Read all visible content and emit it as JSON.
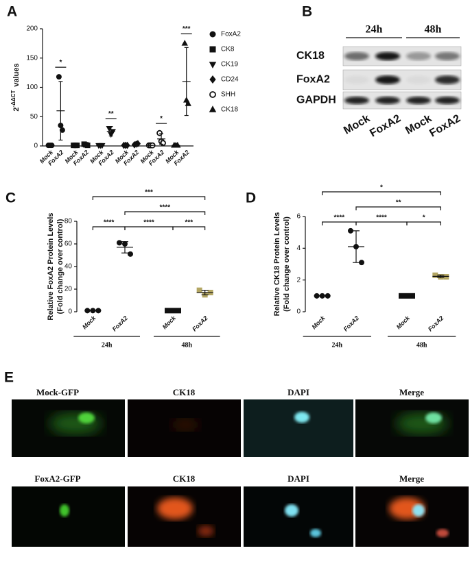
{
  "chart_data": [
    {
      "type": "grouped_dotplot",
      "panel": "A",
      "ylabel": "2",
      "ylabel_exp": "-ΔΔCT",
      "ylabel_tail": "values",
      "ylim": [
        0,
        200
      ],
      "yticks": [
        0,
        50,
        100,
        150,
        200
      ],
      "color": "#111",
      "groups": [
        {
          "name": "FoxA2",
          "marker": "circle",
          "categories": [
            "Mock",
            "FoxA2"
          ],
          "points": [
            [
              1,
              1,
              1
            ],
            [
              118,
              35,
              27
            ]
          ],
          "means": [
            1,
            60
          ],
          "sd": [
            0,
            50
          ],
          "sig": "*"
        },
        {
          "name": "CK8",
          "marker": "square",
          "categories": [
            "Mock",
            "FoxA2"
          ],
          "points": [
            [
              1,
              1,
              1
            ],
            [
              3,
              2,
              1
            ]
          ],
          "means": [
            1,
            2
          ],
          "sd": [
            0,
            1
          ]
        },
        {
          "name": "CK19",
          "marker": "triangle-down",
          "categories": [
            "Mock",
            "FoxA2"
          ],
          "points": [
            [
              1,
              1,
              1
            ],
            [
              30,
              20,
              25
            ]
          ],
          "means": [
            1,
            25
          ],
          "sd": [
            0,
            8
          ],
          "sig": "**"
        },
        {
          "name": "CD24",
          "marker": "diamond",
          "categories": [
            "Mock",
            "FoxA2"
          ],
          "points": [
            [
              1,
              1,
              1
            ],
            [
              2,
              3,
              4
            ]
          ],
          "means": [
            1,
            3
          ],
          "sd": [
            0,
            1
          ]
        },
        {
          "name": "SHH",
          "marker": "open-circle",
          "categories": [
            "Mock",
            "FoxA2"
          ],
          "points": [
            [
              1,
              1,
              1
            ],
            [
              22,
              8,
              5
            ]
          ],
          "means": [
            1,
            12
          ],
          "sd": [
            0,
            9
          ],
          "sig": "*"
        },
        {
          "name": "CK18",
          "marker": "triangle-up",
          "categories": [
            "Mock",
            "FoxA2"
          ],
          "points": [
            [
              1,
              1,
              1
            ],
            [
              175,
              78,
              72
            ]
          ],
          "means": [
            1,
            110
          ],
          "sd": [
            0,
            58
          ],
          "sig": "***"
        }
      ]
    },
    {
      "type": "dotplot",
      "panel": "C",
      "ylabel": "Relative FoxA2 Protein Levels",
      "ylabel2": "(Fold change over control)",
      "ylim": [
        0,
        80
      ],
      "yticks": [
        0,
        20,
        40,
        60,
        80
      ],
      "categories": [
        "Mock",
        "FoxA2",
        "Mock",
        "FoxA2"
      ],
      "groups": [
        "24h",
        "48h"
      ],
      "markers": [
        "circle",
        "circle",
        "square",
        "square"
      ],
      "colors": [
        "#111",
        "#111",
        "#111",
        "#b3a663"
      ],
      "points": [
        [
          1,
          1,
          1
        ],
        [
          61,
          60,
          51
        ],
        [
          1,
          1,
          1
        ],
        [
          19,
          15,
          17
        ]
      ],
      "means": [
        1,
        57,
        1,
        17
      ],
      "sd": [
        0,
        5,
        0,
        2
      ],
      "comparisons": [
        {
          "pair": [
            0,
            1
          ],
          "label": "****"
        },
        {
          "pair": [
            1,
            2
          ],
          "label": "****"
        },
        {
          "pair": [
            2,
            3
          ],
          "label": "***"
        },
        {
          "pair": [
            1,
            3
          ],
          "label": "****"
        },
        {
          "pair": [
            0,
            3
          ],
          "label": "***"
        }
      ]
    },
    {
      "type": "dotplot",
      "panel": "D",
      "ylabel": "Relative CK18 Protein Levels",
      "ylabel2": "(Fold change over control)",
      "ylim": [
        0,
        6
      ],
      "yticks": [
        0,
        2,
        4,
        6
      ],
      "categories": [
        "Mock",
        "FoxA2",
        "Mock",
        "FoxA2"
      ],
      "groups": [
        "24h",
        "48h"
      ],
      "markers": [
        "circle",
        "circle",
        "square",
        "square"
      ],
      "colors": [
        "#111",
        "#111",
        "#111",
        "#b3a663"
      ],
      "points": [
        [
          1,
          1,
          1
        ],
        [
          5.1,
          4.1,
          3.1
        ],
        [
          1,
          1,
          1
        ],
        [
          2.3,
          2.2,
          2.2
        ]
      ],
      "means": [
        1,
        4.1,
        1,
        2.23
      ],
      "sd": [
        0,
        1,
        0,
        0.08
      ],
      "comparisons": [
        {
          "pair": [
            0,
            1
          ],
          "label": "****"
        },
        {
          "pair": [
            1,
            2
          ],
          "label": "****"
        },
        {
          "pair": [
            2,
            3
          ],
          "label": "*"
        },
        {
          "pair": [
            1,
            3
          ],
          "label": "**"
        },
        {
          "pair": [
            0,
            3
          ],
          "label": "*"
        }
      ]
    }
  ],
  "blot": {
    "panel": "B",
    "times": [
      "24h",
      "48h"
    ],
    "rows": [
      "CK18",
      "FoxA2",
      "GAPDH"
    ],
    "lanes": [
      "Mock",
      "FoxA2",
      "Mock",
      "FoxA2"
    ]
  },
  "micrographs": {
    "panel": "E",
    "rows": [
      [
        "Mock-GFP",
        "CK18",
        "DAPI",
        "Merge"
      ],
      [
        "FoxA2-GFP",
        "CK18",
        "DAPI",
        "Merge"
      ]
    ]
  }
}
